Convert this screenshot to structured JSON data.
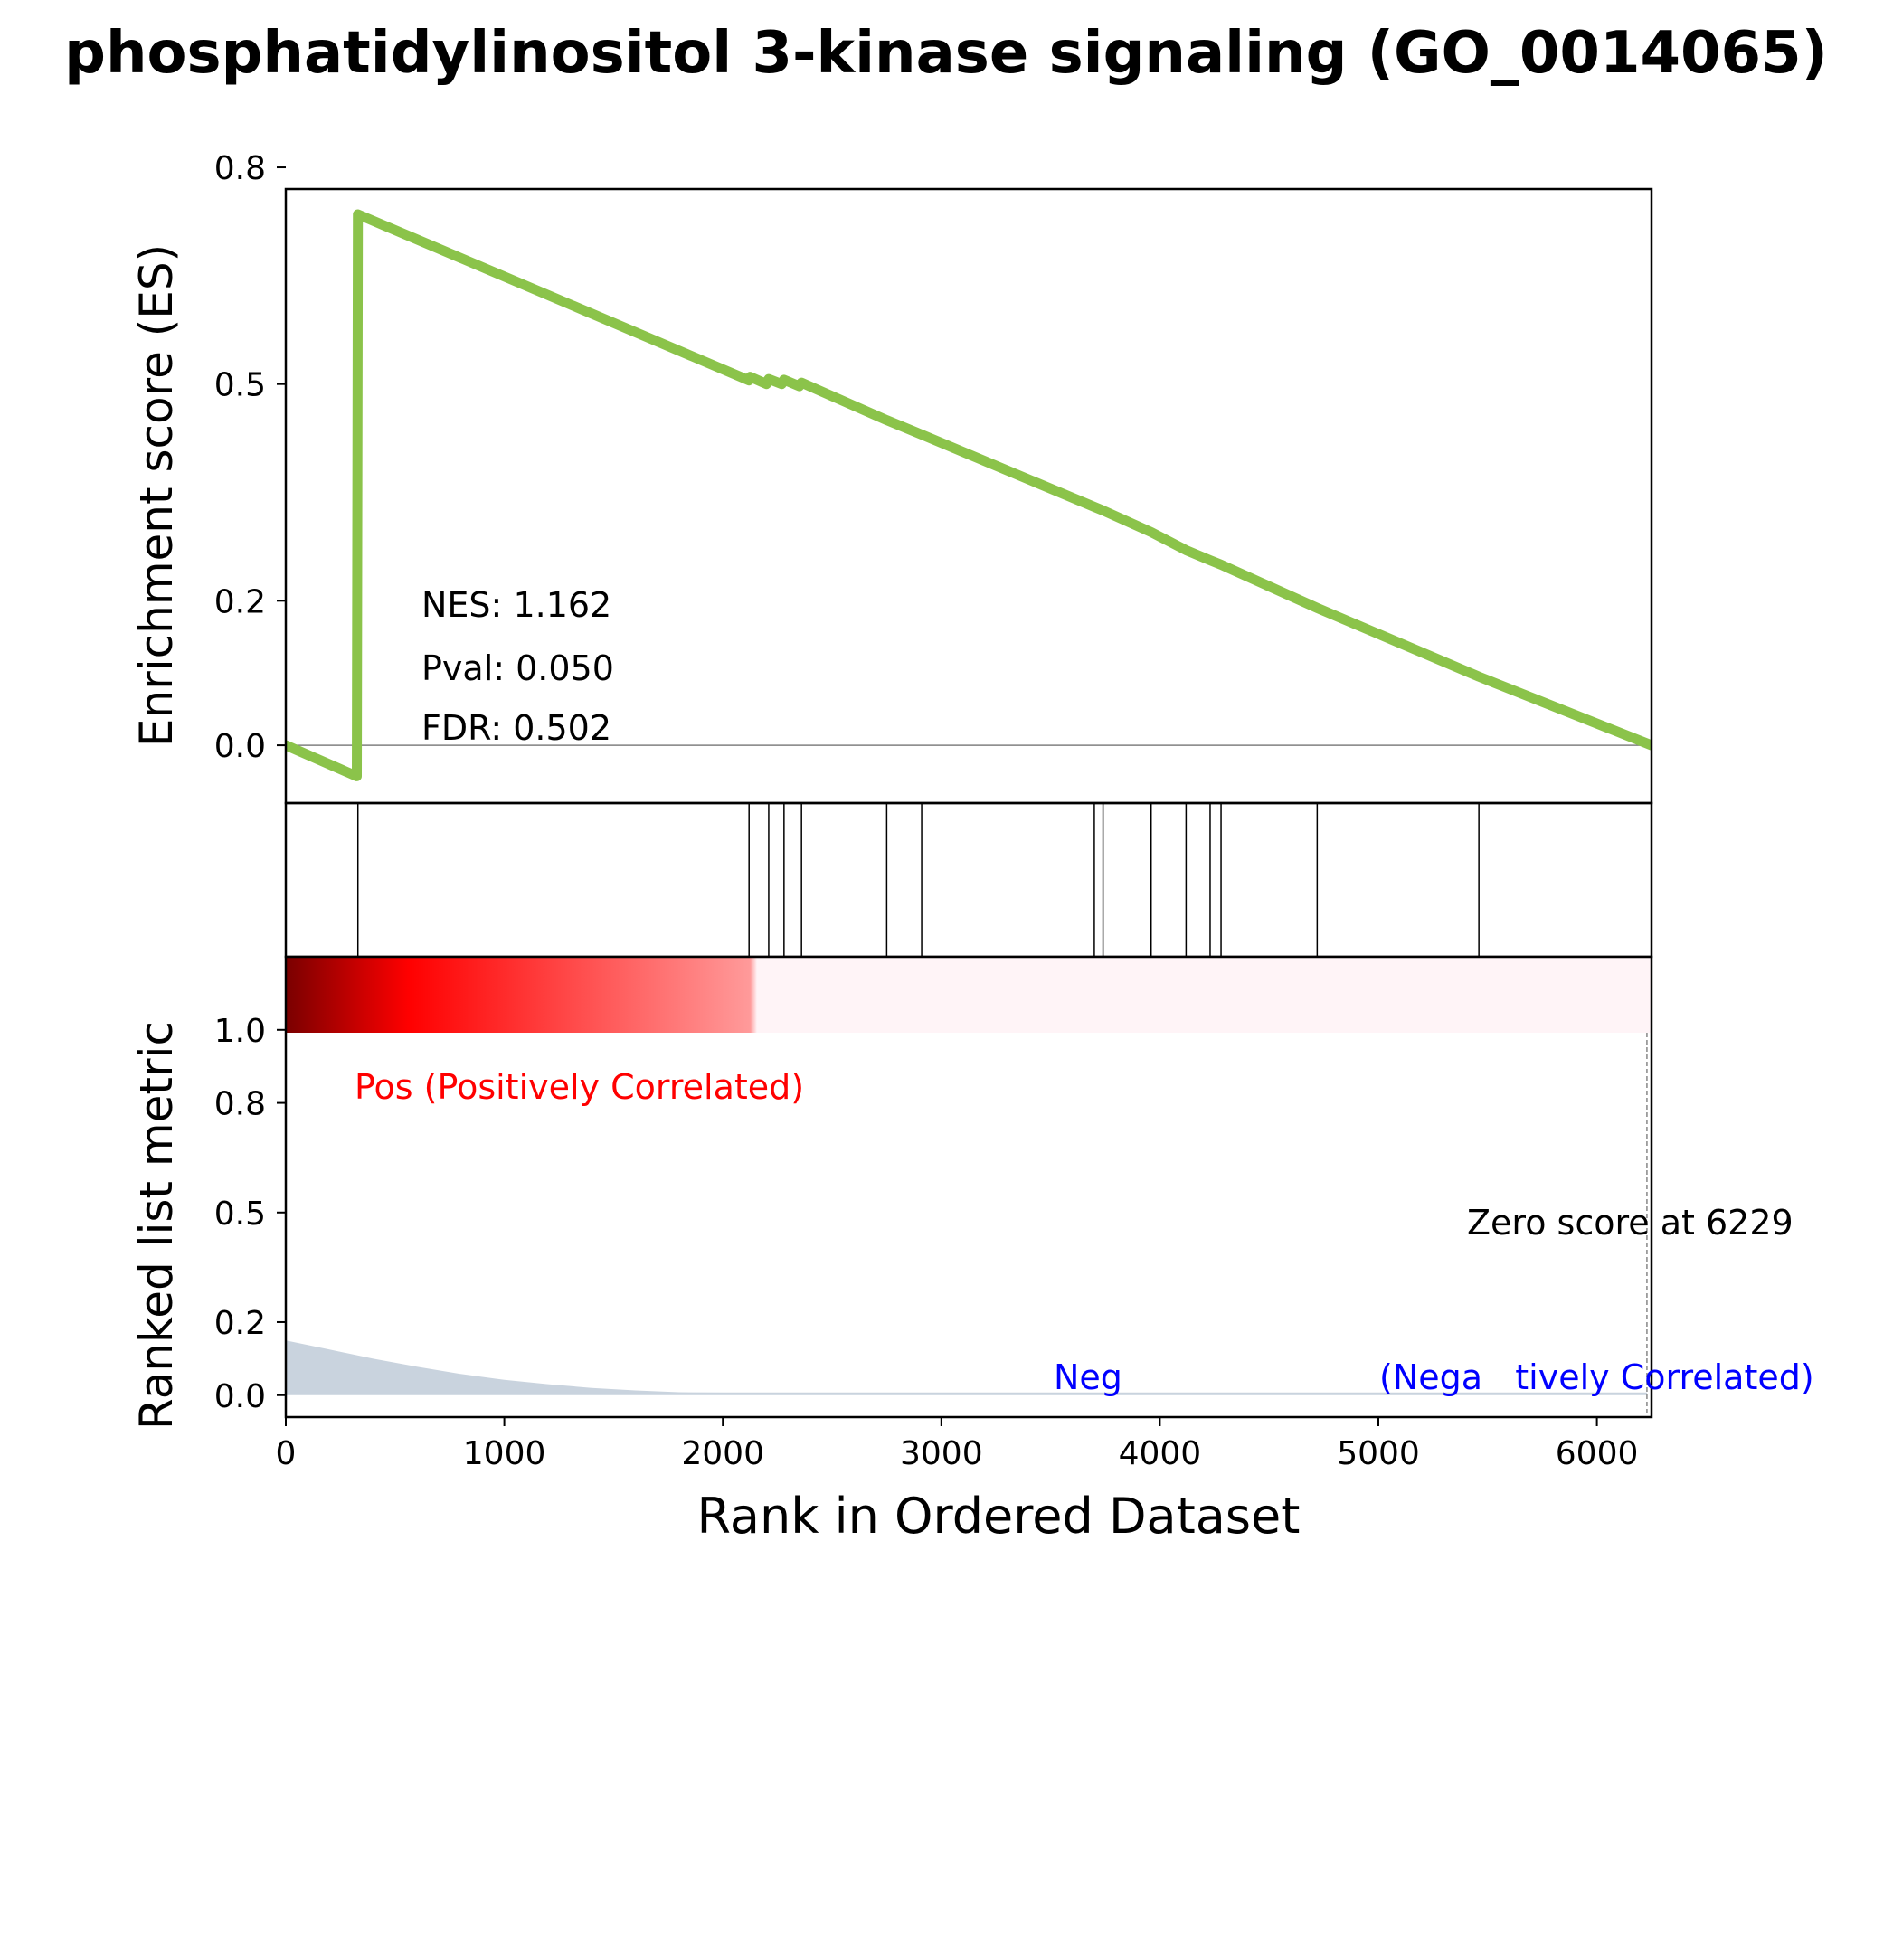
{
  "chart_data": {
    "type": "line",
    "title": "phosphatidylinositol 3-kinase signaling (GO_0014065)",
    "es_panel": {
      "ylabel": "Enrichment score (ES)",
      "yticks": [
        0.0,
        0.2,
        0.5,
        0.8
      ],
      "ytick_labels": [
        "0.0",
        "0.2",
        "0.5",
        "0.8"
      ],
      "ylim": [
        -0.08,
        0.77
      ],
      "line_color": "#8bc34a",
      "points": [
        [
          0,
          0.0
        ],
        [
          325,
          -0.043
        ],
        [
          330,
          0.735
        ],
        [
          2120,
          0.505
        ],
        [
          2125,
          0.51
        ],
        [
          2200,
          0.5
        ],
        [
          2210,
          0.507
        ],
        [
          2270,
          0.5
        ],
        [
          2280,
          0.506
        ],
        [
          2350,
          0.497
        ],
        [
          2360,
          0.502
        ],
        [
          2750,
          0.45
        ],
        [
          2910,
          0.43
        ],
        [
          3700,
          0.33
        ],
        [
          3740,
          0.325
        ],
        [
          3960,
          0.295
        ],
        [
          4120,
          0.27
        ],
        [
          4230,
          0.256
        ],
        [
          4280,
          0.25
        ],
        [
          4720,
          0.19
        ],
        [
          5460,
          0.095
        ],
        [
          6250,
          0.0
        ]
      ],
      "stats": {
        "nes": "NES: 1.162",
        "pval": "Pval: 0.050",
        "fdr": "FDR: 0.502"
      }
    },
    "hits": [
      330,
      2120,
      2210,
      2280,
      2360,
      2750,
      2910,
      3700,
      3740,
      3960,
      4120,
      4230,
      4280,
      4720,
      5460
    ],
    "ranked_panel": {
      "ylabel": "Ranked list metric",
      "yticks": [
        0.0,
        0.2,
        0.5,
        0.8,
        1.0
      ],
      "ytick_labels": [
        "0.0",
        "0.2",
        "0.5",
        "0.8",
        "1.0"
      ],
      "ylim": [
        -0.06,
        1.2
      ],
      "heatmap_colors": [
        "#7a0000",
        "#ff0000",
        "#ff9a9a",
        "#fff4f7"
      ],
      "fill_color": "#c9d3de",
      "metric_curve": [
        [
          0,
          0.15
        ],
        [
          200,
          0.125
        ],
        [
          400,
          0.1
        ],
        [
          600,
          0.078
        ],
        [
          800,
          0.058
        ],
        [
          1000,
          0.042
        ],
        [
          1200,
          0.03
        ],
        [
          1400,
          0.02
        ],
        [
          1600,
          0.013
        ],
        [
          1800,
          0.008
        ],
        [
          2000,
          0.005
        ],
        [
          2400,
          0.003
        ],
        [
          3000,
          0.002
        ],
        [
          4000,
          0.001
        ],
        [
          6229,
          0.0
        ]
      ],
      "pos_label": "Pos (Positively Correlated)",
      "neg_label_left": "Neg",
      "neg_label_right": "(Nega   tively Correlated)",
      "zero_label": "Zero score at 6229",
      "zero_rank": 6229
    },
    "xlabel": "Rank in Ordered Dataset",
    "xlim": [
      0,
      6250
    ],
    "xticks": [
      0,
      1000,
      2000,
      3000,
      4000,
      5000,
      6000
    ],
    "xtick_labels": [
      "0",
      "1000",
      "2000",
      "3000",
      "4000",
      "5000",
      "6000"
    ]
  }
}
